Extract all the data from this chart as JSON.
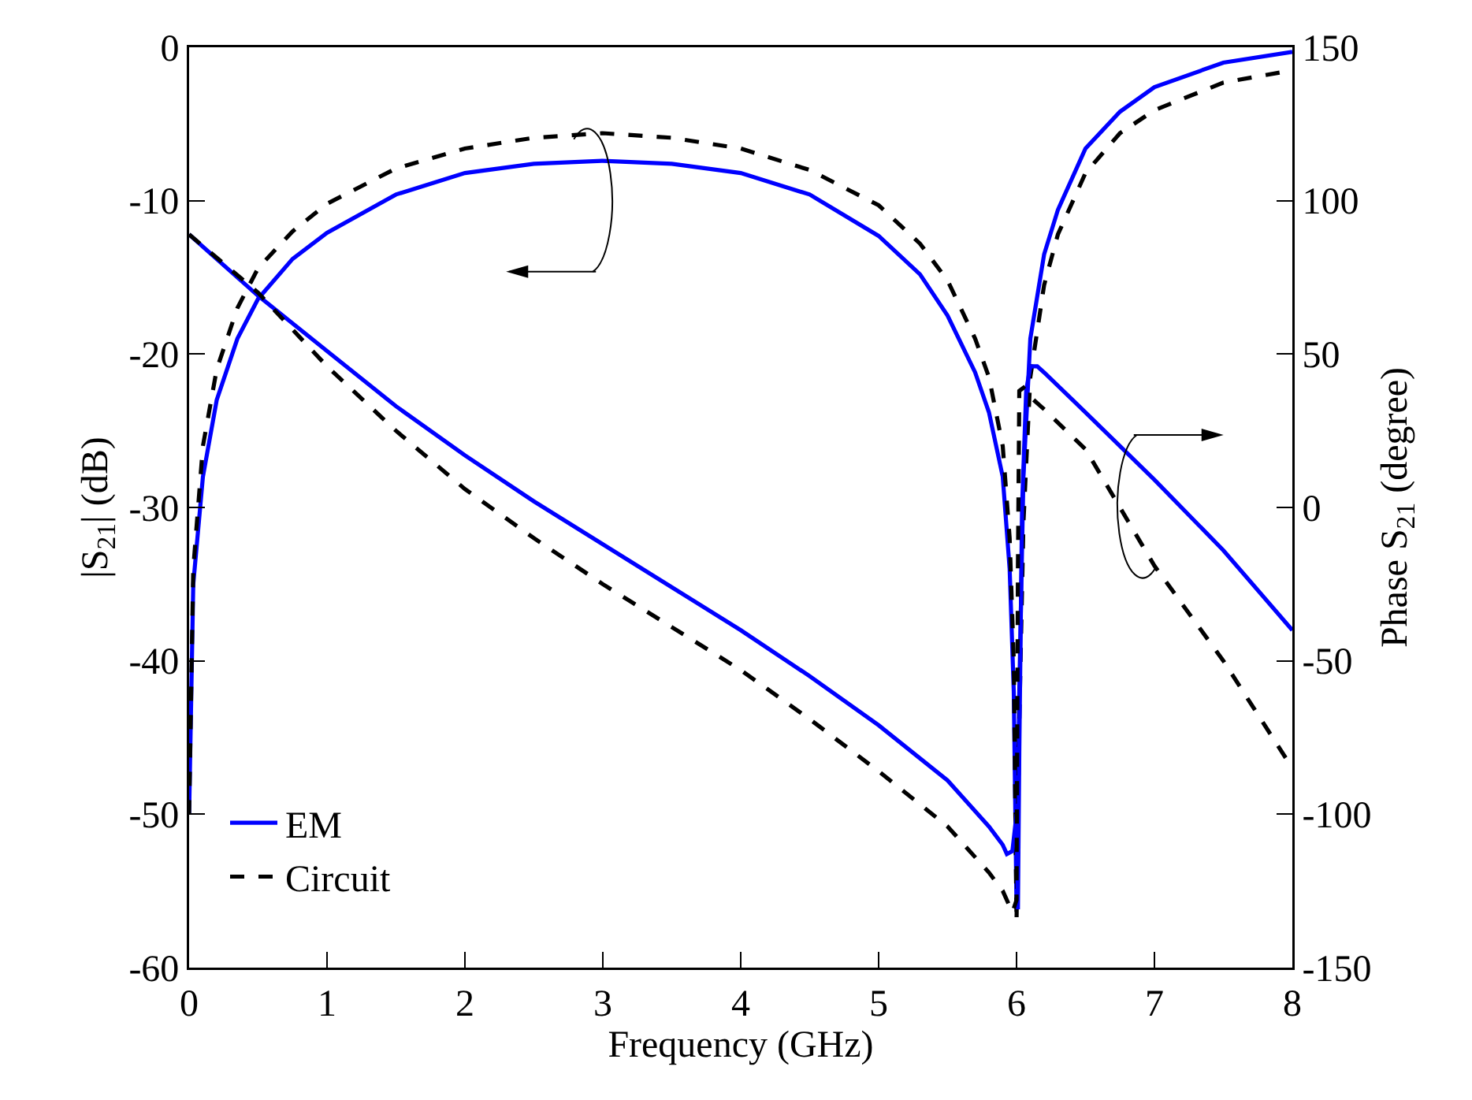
{
  "chart_data": {
    "type": "line",
    "xlabel": "Frequency (GHz)",
    "ylabel": "|S$_{21}$| (dB)",
    "y2label": "Phase S$_{21}$ (degree)",
    "xlim": [
      0,
      8
    ],
    "xticks": [
      0,
      1,
      2,
      3,
      4,
      5,
      6,
      7,
      8
    ],
    "ylim": [
      -60,
      0
    ],
    "yticks": [
      -60,
      -50,
      -40,
      -30,
      -20,
      -10,
      0
    ],
    "y2lim": [
      -150,
      150
    ],
    "y2ticks": [
      -150,
      -100,
      -50,
      0,
      50,
      100,
      150
    ],
    "grid": false,
    "legend": "bottom left",
    "marker": "none",
    "series": [
      {
        "name": "EM",
        "color": "#0000ff",
        "line_style": "solid",
        "x": [
          0,
          0.03,
          0.1,
          0.2,
          0.35,
          0.5,
          0.75,
          1,
          1.5,
          2,
          2.5,
          3,
          3.5,
          4,
          4.5,
          5,
          5.3,
          5.5,
          5.7,
          5.8,
          5.9,
          5.95,
          5.98,
          6.0,
          6.02,
          6.05,
          6.1,
          6.2,
          6.3,
          6.5,
          6.75,
          7,
          7.5,
          8
        ],
        "values": [
          -50,
          -35,
          -28,
          -23,
          -19,
          -16.4,
          -13.8,
          -12.1,
          -9.6,
          -8.2,
          -7.6,
          -7.4,
          -7.6,
          -8.2,
          -9.6,
          -12.3,
          -14.8,
          -17.5,
          -21.2,
          -23.8,
          -28,
          -34,
          -42,
          -56,
          -42,
          -28,
          -19,
          -13.5,
          -10.6,
          -6.6,
          -4.2,
          -2.6,
          -1,
          -0.3
        ]
      },
      {
        "name": "Circuit",
        "color": "#000000",
        "line_style": "dashed",
        "x": [
          0,
          0.03,
          0.1,
          0.2,
          0.35,
          0.5,
          0.75,
          1,
          1.5,
          2,
          2.5,
          3,
          3.5,
          4,
          4.5,
          5,
          5.3,
          5.5,
          5.7,
          5.8,
          5.9,
          5.95,
          5.98,
          6.0,
          6.02,
          6.05,
          6.1,
          6.2,
          6.3,
          6.5,
          6.75,
          7,
          7.5,
          8
        ],
        "values": [
          -50,
          -34,
          -26,
          -21,
          -17,
          -14.4,
          -12,
          -10.2,
          -7.9,
          -6.6,
          -5.9,
          -5.6,
          -5.9,
          -6.6,
          -8,
          -10.3,
          -12.8,
          -15.2,
          -19,
          -21.5,
          -26,
          -32,
          -40,
          -57,
          -44,
          -31,
          -21.5,
          -15.5,
          -12.2,
          -8.2,
          -5.6,
          -4.1,
          -2.3,
          -1.5
        ]
      },
      {
        "color": "#0000ff",
        "line_style": "solid",
        "axis": "y2",
        "x": [
          0,
          0.5,
          1,
          1.5,
          2,
          2.5,
          3,
          3.5,
          4,
          4.5,
          5,
          5.5,
          5.8,
          5.9,
          5.93,
          5.97,
          6.0,
          6.01,
          6.02,
          6.04,
          6.07,
          6.1,
          6.15,
          6.2,
          6.5,
          7,
          7.5,
          8
        ],
        "values": [
          89,
          69,
          51,
          33,
          17,
          2,
          -12,
          -26,
          -40,
          -55,
          -71,
          -89,
          -104,
          -110,
          -113,
          -112,
          -100,
          -131,
          -80,
          0,
          38,
          46,
          46,
          44,
          31,
          9,
          -14,
          -40
        ]
      },
      {
        "color": "#000000",
        "line_style": "dashed",
        "axis": "y2",
        "x": [
          0,
          0.5,
          1,
          1.5,
          2,
          2.5,
          3,
          3.5,
          4,
          4.5,
          5,
          5.5,
          5.8,
          5.9,
          5.97,
          6.0,
          6.01,
          6.02,
          6.05,
          6.1,
          6.2,
          6.5,
          7,
          7.5,
          8
        ],
        "values": [
          89,
          70,
          46,
          25,
          6,
          -10,
          -25,
          -39,
          -53,
          -69,
          -86,
          -104,
          -119,
          -125,
          -132,
          -128,
          -20,
          38,
          39,
          36,
          32,
          19,
          -19,
          -50,
          -85
        ]
      }
    ]
  }
}
